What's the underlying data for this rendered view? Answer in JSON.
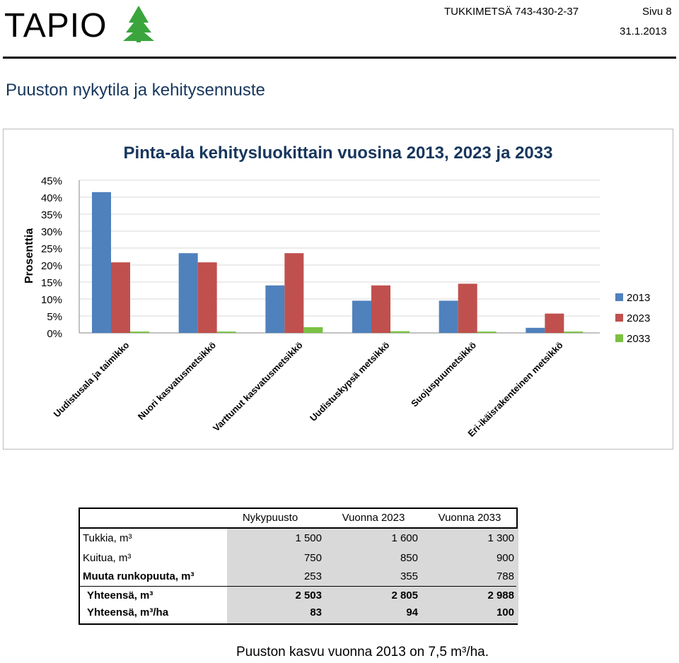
{
  "header": {
    "logo_text": "TAPIO",
    "doc_id": "TUKKIMETSÄ 743-430-2-37",
    "page": "Sivu 8",
    "date": "31.1.2013"
  },
  "section_title": "Puuston nykytila ja kehitysennuste",
  "chart_data": {
    "type": "bar",
    "title": "Pinta-ala kehitysluokittain vuosina 2013, 2023 ja 2033",
    "xlabel": "",
    "ylabel": "Prosenttia",
    "ylim": [
      0,
      45
    ],
    "yticks": [
      "45%",
      "40%",
      "35%",
      "30%",
      "25%",
      "20%",
      "15%",
      "10%",
      "5%",
      "0%"
    ],
    "grid": true,
    "legend_position": "right",
    "categories": [
      "Uudistusala ja taimikko",
      "Nuori kasvatusmetsikkö",
      "Varttunut kasvatusmetsikkö",
      "Uudistuskypsä metsikkö",
      "Suojuspuumetsikkö",
      "Eri-ikäisrakenteinen metsikkö"
    ],
    "series": [
      {
        "name": "2013",
        "color": "#4f81bd",
        "values": [
          41.5,
          23.5,
          14,
          9.5,
          9.5,
          1.5
        ]
      },
      {
        "name": "2023",
        "color": "#c0504d",
        "values": [
          20.8,
          20.8,
          23.5,
          14,
          14.5,
          5.7
        ]
      },
      {
        "name": "2033",
        "color": "#7ac142",
        "values": [
          0.4,
          0.4,
          1.7,
          0.5,
          0.4,
          0.4
        ]
      }
    ]
  },
  "table": {
    "headers": [
      "Nykypuusto",
      "Vuonna 2023",
      "Vuonna 2033"
    ],
    "rows": [
      {
        "label": "Tukkia, m³",
        "values": [
          "1 500",
          "1 600",
          "1 300"
        ]
      },
      {
        "label": "Kuitua, m³",
        "values": [
          "750",
          "850",
          "900"
        ]
      },
      {
        "label": "Muuta runkopuuta, m³",
        "values": [
          "253",
          "355",
          "788"
        ]
      }
    ],
    "totals": [
      {
        "label": "Yhteensä, m³",
        "values": [
          "2 503",
          "2 805",
          "2 988"
        ]
      },
      {
        "label": "Yhteensä, m³/ha",
        "values": [
          "83",
          "94",
          "100"
        ]
      }
    ]
  },
  "note": "Puuston kasvu vuonna 2013 on 7,5 m³/ha."
}
